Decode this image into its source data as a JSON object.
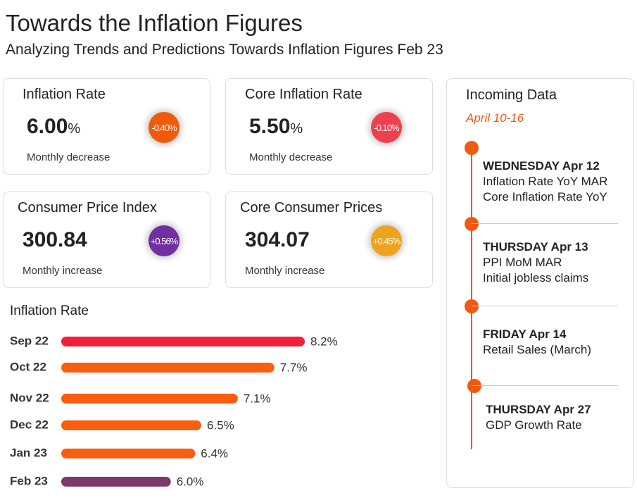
{
  "header": {
    "title": "Towards the Inflation Figures",
    "subtitle": "Analyzing Trends and Predictions Towards Inflation Figures Feb 23"
  },
  "cards": [
    {
      "title": "Inflation Rate",
      "value": "6.00",
      "unit": "%",
      "badge": "-0.40%",
      "badge_color": "#f25a0b",
      "note": "Monthly decrease"
    },
    {
      "title": "Core Inflation  Rate",
      "value": "5.50",
      "unit": "%",
      "badge": "-0.10%",
      "badge_color": "#ee4150",
      "note": "Monthly decrease"
    },
    {
      "title": "Consumer Price Index",
      "value": "300.84",
      "badge": "+0.56%",
      "badge_color": "#7030a0",
      "note": "Monthly increase"
    },
    {
      "title": "Core Consumer Prices",
      "value": "304.07",
      "badge": "+0.45%",
      "badge_color": "#eea21e",
      "note": "Monthly increase"
    }
  ],
  "incoming": {
    "title": "Incoming Data",
    "date": "April 10-16",
    "events": [
      {
        "day": "WEDNESDAY  Apr 12",
        "items": [
          "Inflation Rate YoY MAR",
          "Core Inflation Rate YoY"
        ]
      },
      {
        "day": "THURSDAY Apr 13",
        "items": [
          "PPI MoM MAR",
          "Initial jobless claims"
        ]
      },
      {
        "day": "FRIDAY Apr 14",
        "items": [
          "Retail Sales (March)"
        ]
      },
      {
        "day": "THURSDAY Apr 27",
        "items": [
          "GDP Growth Rate"
        ]
      }
    ]
  },
  "chart_data": {
    "type": "bar",
    "orientation": "horizontal",
    "title": "Inflation Rate",
    "categories": [
      "Sep 22",
      "Oct 22",
      "Nov 22",
      "Dec 22",
      "Jan 23",
      "Feb 23"
    ],
    "values": [
      8.2,
      7.7,
      7.1,
      6.5,
      6.4,
      6.0
    ],
    "value_labels": [
      "8.2%",
      "7.7%",
      "7.1%",
      "6.5%",
      "6.4%",
      "6.0%"
    ],
    "colors": [
      "#f0203a",
      "#f95d0f",
      "#f95d0f",
      "#f95d0f",
      "#f95d0f",
      "#7b3a6b"
    ],
    "xlim": [
      4.2,
      8.6
    ]
  }
}
